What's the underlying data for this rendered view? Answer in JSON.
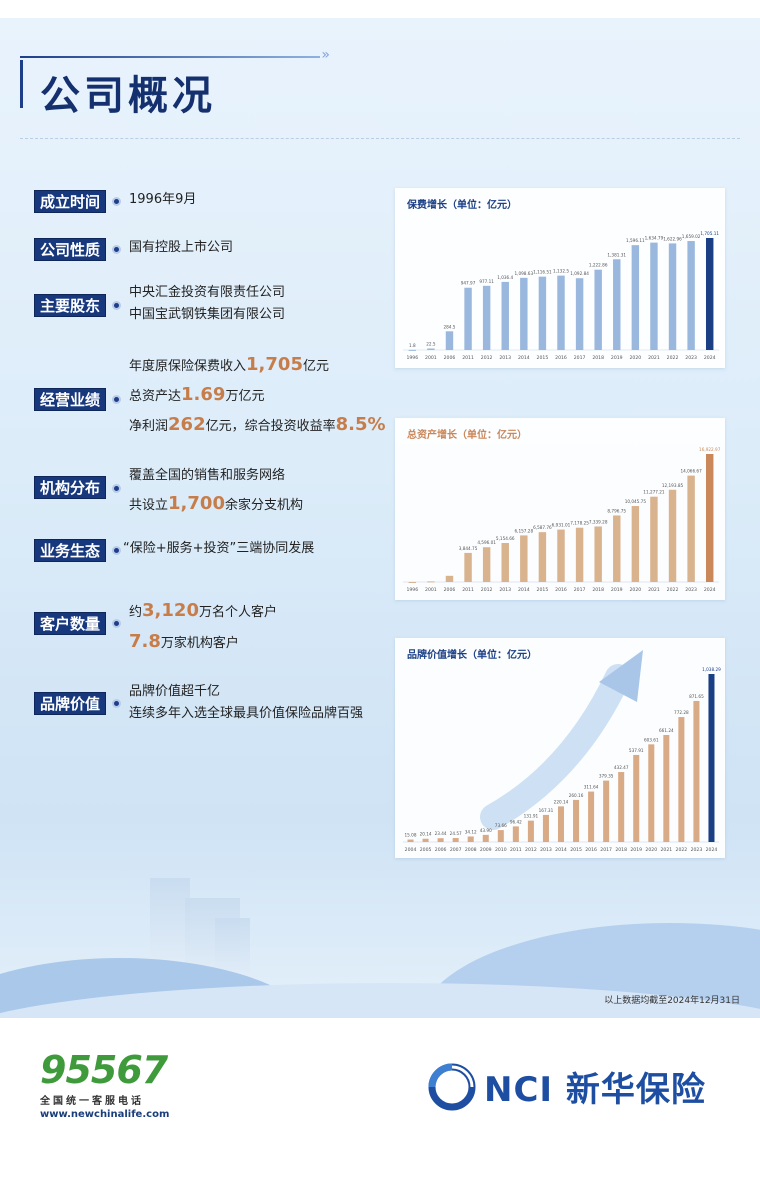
{
  "page": {
    "title": "公司概况",
    "footnote": "以上数据均截至2024年12月31日"
  },
  "info": [
    {
      "tag": "成立时间",
      "lines": [
        "1996年9月"
      ]
    },
    {
      "tag": "公司性质",
      "lines": [
        "国有控股上市公司"
      ]
    },
    {
      "tag": "主要股东",
      "lines": [
        "中央汇金投资有限责任公司",
        "中国宝武钢铁集团有限公司"
      ]
    },
    {
      "tag": "经营业绩",
      "premium": {
        "pre": "年度原保险保费收入",
        "num": "1,705",
        "post": "亿元"
      },
      "assets": {
        "pre": "总资产达",
        "num": "1.69",
        "post": "万亿元"
      },
      "profit": {
        "pre": "净利润",
        "num": "262",
        "mid": "亿元，综合投资收益率",
        "num2": "8.5%"
      }
    },
    {
      "tag": "机构分布",
      "line1": "覆盖全国的销售和服务网络",
      "branches": {
        "pre": "共设立",
        "num": "1,700",
        "post": "余家分支机构"
      }
    },
    {
      "tag": "业务生态",
      "lines": [
        "“保险+服务+投资”三端协同发展"
      ]
    },
    {
      "tag": "客户数量",
      "individual": {
        "pre": "约",
        "num": "3,120",
        "post": "万名个人客户"
      },
      "institution": {
        "num": "7.8",
        "post": "万家机构客户"
      }
    },
    {
      "tag": "品牌价值",
      "lines": [
        "品牌价值超千亿",
        "连续多年入选全球最具价值保险品牌百强"
      ]
    }
  ],
  "chart_data": [
    {
      "type": "bar",
      "title": "保费增长（单位：亿元）",
      "categories": [
        "1996",
        "2001",
        "2006",
        "2011",
        "2012",
        "2013",
        "2014",
        "2015",
        "2016",
        "2017",
        "2018",
        "2019",
        "2020",
        "2021",
        "2022",
        "2023",
        "2024"
      ],
      "values": [
        1.8,
        22.5,
        284.5,
        947.97,
        977.11,
        1036.4,
        1098.63,
        1116.51,
        1132.5,
        1092.84,
        1222.86,
        1381.31,
        1596.11,
        1634.79,
        1622.96,
        1659.02,
        1705.11
      ],
      "labels": [
        "1.8",
        "22.5",
        "284.5",
        "947.97",
        "977.11",
        "1,036.4",
        "1,098.63",
        "1,116.51",
        "1,132.5",
        "1,092.84",
        "1,222.86",
        "1,381.31",
        "1,596.11",
        "1,634.79",
        "1,622.96",
        "1,659.02",
        "1,705.11"
      ],
      "colors": {
        "bar": "#9ab8dd",
        "highlight": "#1b3f85",
        "title": "#1b3f85"
      }
    },
    {
      "type": "bar",
      "title": "总资产增长（单位：亿元）",
      "categories": [
        "1996",
        "2001",
        "2006",
        "2011",
        "2012",
        "2013",
        "2014",
        "2015",
        "2016",
        "2017",
        "2018",
        "2019",
        "2020",
        "2021",
        "2022",
        "2023",
        "2024"
      ],
      "values": [
        5,
        80,
        815,
        3844.75,
        4596.01,
        5154.66,
        6157.28,
        6587.76,
        6931.01,
        7178.25,
        7339.28,
        8796.75,
        10045.75,
        11277.21,
        12193.85,
        14066.67,
        16922.97
      ],
      "labels": [
        "",
        "",
        "",
        "3,844.75",
        "4,596.01",
        "5,154.66",
        "6,157.28",
        "6,587.76",
        "6,931.01",
        "7,178.25",
        "7,339.28",
        "8,796.75",
        "10,045.75",
        "11,277.21",
        "12,193.85",
        "14,066.67",
        "16,922.97"
      ],
      "colors": {
        "bar": "#d9b28e",
        "highlight": "#c9875a",
        "title": "#c9875a"
      }
    },
    {
      "type": "bar",
      "title": "品牌价值增长（单位：亿元）",
      "categories": [
        "2004",
        "2005",
        "2006",
        "2007",
        "2008",
        "2009",
        "2010",
        "2011",
        "2012",
        "2013",
        "2014",
        "2015",
        "2016",
        "2017",
        "2018",
        "2019",
        "2020",
        "2021",
        "2022",
        "2023",
        "2024"
      ],
      "values": [
        15.08,
        20.14,
        23.44,
        24.57,
        34.12,
        43.9,
        73.66,
        96.42,
        131.91,
        167.31,
        220.14,
        260.16,
        311.64,
        379.35,
        432.47,
        537.91,
        603.61,
        661.24,
        772.28,
        871.65,
        1038.29
      ],
      "labels": [
        "15.08",
        "20.14",
        "23.44",
        "24.57",
        "34.12",
        "43.90",
        "73.66",
        "96.42",
        "131.91",
        "167.31",
        "220.14",
        "260.16",
        "311.64",
        "379.35",
        "432.47",
        "537.91",
        "603.61",
        "661.24",
        "772.28",
        "871.65",
        "1,038.29"
      ],
      "colors": {
        "bar": "#d9aa86",
        "highlight": "#1b3f85",
        "title": "#1b3f85"
      }
    }
  ],
  "footer": {
    "hotline": "95567",
    "hotline_sub": "全国统一客服电话",
    "url": "www.newchinalife.com",
    "brand_latin": "NCI",
    "brand_cn": "新华保险"
  }
}
